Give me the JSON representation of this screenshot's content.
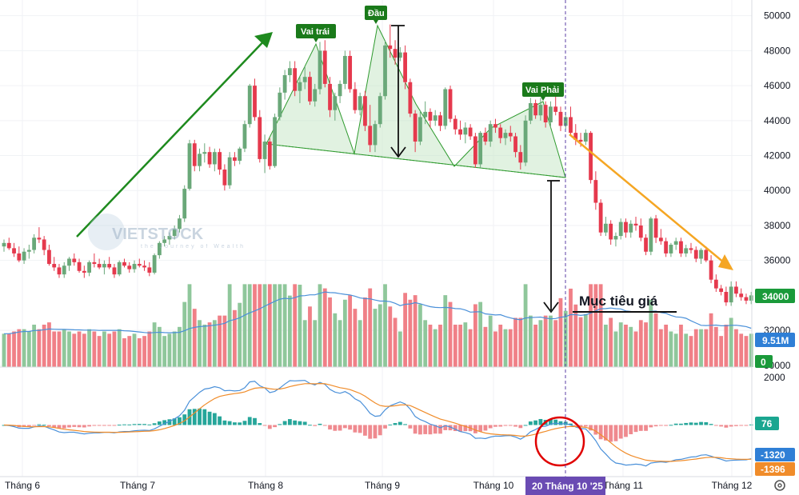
{
  "chart_data": {
    "type": "candlestick",
    "price_axis": {
      "ticks": [
        "50000",
        "48000",
        "46000",
        "44000",
        "42000",
        "40000",
        "38000",
        "36000",
        "32000",
        "30000"
      ],
      "range": [
        29900,
        50900
      ]
    },
    "volume_axis": {
      "range": [
        0,
        11000000
      ]
    },
    "macd_axis": {
      "ticks": [
        "2000"
      ],
      "range": [
        -2100,
        2300
      ]
    },
    "x_labels": [
      "Tháng 6",
      "Tháng 7",
      "Tháng 8",
      "Tháng 9",
      "Tháng 10",
      "Tháng 11",
      "Tháng 12"
    ],
    "candles": [
      [
        36800,
        37200,
        36500,
        37000
      ],
      [
        37000,
        37300,
        36600,
        36700
      ],
      [
        36700,
        37000,
        36200,
        36400
      ],
      [
        36400,
        36800,
        35900,
        36000
      ],
      [
        36000,
        36700,
        35800,
        36500
      ],
      [
        36500,
        36900,
        36100,
        36600
      ],
      [
        36600,
        37500,
        36400,
        37300
      ],
      [
        37300,
        37900,
        37000,
        37200
      ],
      [
        37200,
        37400,
        36300,
        36600
      ],
      [
        36600,
        36900,
        35700,
        35800
      ],
      [
        35800,
        36200,
        35400,
        35600
      ],
      [
        35600,
        35800,
        35000,
        35200
      ],
      [
        35200,
        35900,
        35000,
        35700
      ],
      [
        35700,
        36200,
        35400,
        36100
      ],
      [
        36100,
        36400,
        35700,
        35900
      ],
      [
        35900,
        36100,
        35300,
        35400
      ],
      [
        35400,
        35700,
        35000,
        35300
      ],
      [
        35300,
        36000,
        35100,
        35900
      ],
      [
        35900,
        36400,
        35600,
        35800
      ],
      [
        35800,
        36100,
        35500,
        35600
      ],
      [
        35600,
        36000,
        35200,
        35800
      ],
      [
        35800,
        36200,
        35500,
        35600
      ],
      [
        35600,
        35800,
        35000,
        35200
      ],
      [
        35200,
        36000,
        35100,
        35900
      ],
      [
        35900,
        36100,
        35600,
        35700
      ],
      [
        35700,
        35900,
        35300,
        35500
      ],
      [
        35500,
        36000,
        35300,
        35800
      ],
      [
        35800,
        36100,
        35600,
        35700
      ],
      [
        35700,
        36000,
        35400,
        35600
      ],
      [
        35600,
        35900,
        35100,
        35300
      ],
      [
        35300,
        36400,
        35200,
        36300
      ],
      [
        36300,
        37100,
        36100,
        37000
      ],
      [
        37000,
        37400,
        36800,
        37200
      ],
      [
        37200,
        37600,
        36900,
        37400
      ],
      [
        37400,
        38000,
        37200,
        37800
      ],
      [
        37800,
        38600,
        37600,
        38400
      ],
      [
        38400,
        40300,
        38200,
        40100
      ],
      [
        40100,
        42900,
        40000,
        42700
      ],
      [
        42700,
        42900,
        41100,
        41400
      ],
      [
        41400,
        42400,
        41100,
        42100
      ],
      [
        42100,
        42700,
        41600,
        42200
      ],
      [
        42200,
        42500,
        41300,
        41500
      ],
      [
        41500,
        42400,
        41100,
        42200
      ],
      [
        42200,
        42400,
        40900,
        41200
      ],
      [
        41200,
        41500,
        40000,
        40300
      ],
      [
        40300,
        42200,
        40100,
        41900
      ],
      [
        41900,
        42200,
        41400,
        41700
      ],
      [
        41700,
        42500,
        41500,
        42400
      ],
      [
        42400,
        44000,
        42200,
        43800
      ],
      [
        43800,
        46100,
        43600,
        46000
      ],
      [
        46000,
        46400,
        44000,
        44200
      ],
      [
        44200,
        44600,
        41600,
        41800
      ],
      [
        41800,
        43200,
        41000,
        42800
      ],
      [
        42800,
        43000,
        41200,
        41400
      ],
      [
        41400,
        44400,
        41300,
        44200
      ],
      [
        44200,
        45900,
        44000,
        45600
      ],
      [
        45600,
        46900,
        45200,
        46600
      ],
      [
        46600,
        47400,
        46200,
        47000
      ],
      [
        47000,
        47400,
        45400,
        45700
      ],
      [
        45700,
        46500,
        45000,
        46200
      ],
      [
        46200,
        47100,
        45800,
        46500
      ],
      [
        46500,
        46800,
        44900,
        45100
      ],
      [
        45100,
        46100,
        44800,
        45800
      ],
      [
        45800,
        48500,
        45500,
        48000
      ],
      [
        48000,
        48600,
        45900,
        46100
      ],
      [
        46100,
        46500,
        44200,
        44600
      ],
      [
        44600,
        45600,
        44000,
        45400
      ],
      [
        45400,
        46300,
        45000,
        46100
      ],
      [
        46100,
        48000,
        45800,
        47700
      ],
      [
        47700,
        48000,
        45600,
        45800
      ],
      [
        45800,
        46200,
        44400,
        44600
      ],
      [
        44600,
        45600,
        44300,
        45400
      ],
      [
        45400,
        45700,
        43400,
        43700
      ],
      [
        43700,
        44900,
        42200,
        42600
      ],
      [
        42600,
        44000,
        42200,
        43800
      ],
      [
        43800,
        45600,
        43600,
        45400
      ],
      [
        45400,
        48600,
        45200,
        48300
      ],
      [
        48300,
        49500,
        47600,
        48100
      ],
      [
        48100,
        48600,
        47200,
        47600
      ],
      [
        47600,
        48200,
        47400,
        47900
      ],
      [
        47900,
        48300,
        45800,
        46200
      ],
      [
        46200,
        46400,
        44200,
        44400
      ],
      [
        44400,
        44600,
        42200,
        42800
      ],
      [
        42800,
        44600,
        42600,
        44200
      ],
      [
        44200,
        45100,
        43800,
        44500
      ],
      [
        44500,
        44700,
        43600,
        44000
      ],
      [
        44000,
        44600,
        43700,
        44300
      ],
      [
        44300,
        44500,
        43400,
        43700
      ],
      [
        43700,
        45900,
        43500,
        45800
      ],
      [
        45800,
        46000,
        43900,
        44100
      ],
      [
        44100,
        44300,
        43200,
        43500
      ],
      [
        43500,
        44000,
        42900,
        43200
      ],
      [
        43200,
        43900,
        42700,
        43600
      ],
      [
        43600,
        43800,
        42900,
        43100
      ],
      [
        43100,
        43300,
        41300,
        41500
      ],
      [
        41500,
        43400,
        41300,
        43300
      ],
      [
        43300,
        43600,
        42600,
        42800
      ],
      [
        42800,
        44000,
        42500,
        43800
      ],
      [
        43800,
        44100,
        43300,
        43600
      ],
      [
        43600,
        43800,
        42700,
        43000
      ],
      [
        43000,
        43500,
        42600,
        43300
      ],
      [
        43300,
        43700,
        42800,
        43100
      ],
      [
        43100,
        43300,
        41900,
        42200
      ],
      [
        42200,
        42600,
        41200,
        41600
      ],
      [
        41600,
        44300,
        41400,
        44000
      ],
      [
        44000,
        45300,
        43800,
        45000
      ],
      [
        45000,
        45200,
        44100,
        44300
      ],
      [
        44300,
        45300,
        44000,
        44900
      ],
      [
        44900,
        45100,
        43600,
        43900
      ],
      [
        43900,
        45100,
        43600,
        44800
      ],
      [
        44800,
        45600,
        44300,
        44500
      ],
      [
        44500,
        44800,
        43400,
        43700
      ],
      [
        43700,
        44500,
        43500,
        44200
      ],
      [
        44200,
        44800,
        43100,
        43300
      ],
      [
        43300,
        43800,
        42600,
        42900
      ],
      [
        42900,
        43300,
        42500,
        42800
      ],
      [
        42800,
        43500,
        42600,
        43300
      ],
      [
        43300,
        43400,
        40400,
        40600
      ],
      [
        40600,
        41100,
        38900,
        39300
      ],
      [
        39300,
        39500,
        37400,
        37600
      ],
      [
        37600,
        38500,
        37400,
        38100
      ],
      [
        38100,
        38300,
        36900,
        37200
      ],
      [
        37200,
        37600,
        36800,
        37400
      ],
      [
        37400,
        38400,
        37200,
        38200
      ],
      [
        38200,
        38400,
        37300,
        37600
      ],
      [
        37600,
        38300,
        37300,
        38100
      ],
      [
        38100,
        38500,
        37700,
        38000
      ],
      [
        38000,
        38400,
        37100,
        37300
      ],
      [
        37300,
        37500,
        36300,
        36500
      ],
      [
        36500,
        38500,
        36300,
        38400
      ],
      [
        38400,
        38600,
        37000,
        37300
      ],
      [
        37300,
        37800,
        36900,
        37100
      ],
      [
        37100,
        37300,
        36200,
        36400
      ],
      [
        36400,
        37000,
        36200,
        36900
      ],
      [
        36900,
        37300,
        36600,
        37100
      ],
      [
        37100,
        37300,
        36200,
        36400
      ],
      [
        36400,
        36900,
        36200,
        36700
      ],
      [
        36700,
        37000,
        36400,
        36600
      ],
      [
        36600,
        36800,
        35900,
        36100
      ],
      [
        36100,
        36700,
        35800,
        36600
      ],
      [
        36600,
        36800,
        35900,
        36000
      ],
      [
        36000,
        36300,
        34700,
        34900
      ],
      [
        34900,
        35200,
        34200,
        34400
      ],
      [
        34400,
        34600,
        34000,
        34200
      ],
      [
        34200,
        34500,
        33400,
        33600
      ],
      [
        33600,
        34800,
        33400,
        34500
      ],
      [
        34500,
        34800,
        33900,
        34100
      ],
      [
        34100,
        34400,
        33700,
        33900
      ],
      [
        33900,
        34100,
        33500,
        33700
      ],
      [
        33700,
        34200,
        33500,
        34000
      ]
    ],
    "indicators": {
      "volume_label": "9.51M",
      "volume_zero": "0",
      "macd_hist": "76",
      "macd_line": "-1320",
      "signal_line": "-1396"
    },
    "last_price": "34000"
  },
  "annotations": {
    "left_shoulder": "Vai trái",
    "head": "Đầu",
    "right_shoulder": "Vai Phải",
    "target": "Mục tiêu giá",
    "crosshair_date": "20 Tháng 10 '25"
  },
  "watermark": {
    "brand": "VIETSTOCK",
    "tagline": "the Journey of Wealth"
  },
  "colors": {
    "up": "#6aa879",
    "down": "#e5394d",
    "vol_up": "#8fc79b",
    "vol_down": "#f08087",
    "ma_vol": "#4a90d9",
    "macd": "#4a90d9",
    "signal": "#f08c2a",
    "trend_green": "#1e8a1e",
    "trend_orange": "#f5a623",
    "pattern_fill": "#c8e8c8",
    "crosshair_badge": "#6a4bb3"
  },
  "icons": {
    "settings": "gear-icon"
  }
}
